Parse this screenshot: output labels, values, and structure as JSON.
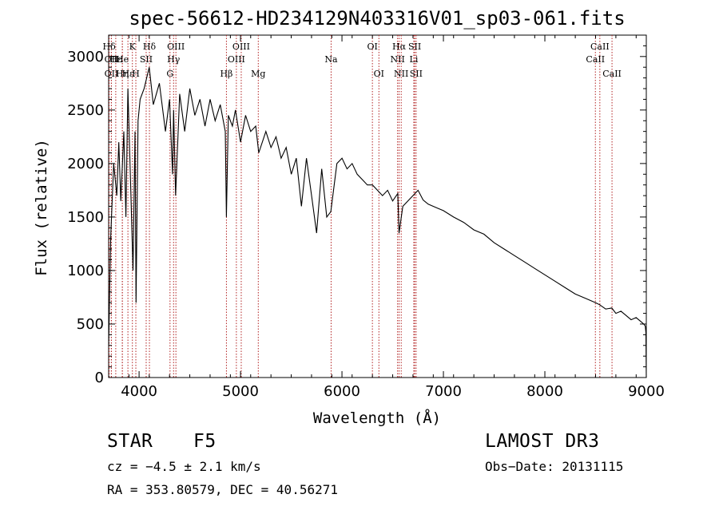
{
  "chart_data": {
    "type": "line",
    "title": "spec-56612-HD234129N403316V01_sp03-061.fits",
    "xlabel": "Wavelength (Å)",
    "ylabel": "Flux (relative)",
    "xlim": [
      3700,
      9000
    ],
    "ylim": [
      0,
      3200
    ],
    "xticks": [
      4000,
      5000,
      6000,
      7000,
      8000,
      9000
    ],
    "yticks": [
      0,
      500,
      1000,
      1500,
      2000,
      2500,
      3000
    ],
    "grid": false,
    "series": [
      {
        "name": "spectrum",
        "x": [
          3700,
          3720,
          3750,
          3780,
          3800,
          3820,
          3850,
          3870,
          3890,
          3920,
          3940,
          3960,
          3970,
          3990,
          4010,
          4050,
          4100,
          4140,
          4200,
          4260,
          4300,
          4330,
          4340,
          4360,
          4400,
          4450,
          4500,
          4550,
          4600,
          4650,
          4700,
          4750,
          4800,
          4850,
          4861,
          4880,
          4920,
          4950,
          5000,
          5050,
          5100,
          5150,
          5180,
          5250,
          5300,
          5350,
          5400,
          5450,
          5500,
          5550,
          5600,
          5650,
          5700,
          5750,
          5800,
          5850,
          5890,
          5950,
          6000,
          6050,
          6100,
          6150,
          6200,
          6250,
          6300,
          6350,
          6400,
          6450,
          6500,
          6550,
          6563,
          6600,
          6650,
          6700,
          6750,
          6800,
          6850,
          6900,
          6950,
          7000,
          7100,
          7200,
          7300,
          7400,
          7500,
          7600,
          7700,
          7800,
          7900,
          8000,
          8100,
          8200,
          8300,
          8400,
          8500,
          8540,
          8600,
          8660,
          8700,
          8750,
          8800,
          8850,
          8900,
          8950,
          8975,
          8990,
          8996,
          9000
        ],
        "values": [
          300,
          1300,
          2000,
          1700,
          2200,
          1650,
          2300,
          1500,
          2700,
          1700,
          1000,
          2300,
          700,
          2400,
          2600,
          2700,
          2900,
          2550,
          2750,
          2300,
          2600,
          1900,
          2500,
          1700,
          2650,
          2300,
          2700,
          2450,
          2600,
          2350,
          2600,
          2400,
          2550,
          2300,
          1500,
          2450,
          2350,
          2500,
          2200,
          2450,
          2300,
          2350,
          2100,
          2300,
          2150,
          2250,
          2050,
          2150,
          1900,
          2050,
          1600,
          2050,
          1700,
          1350,
          1950,
          1500,
          1550,
          2000,
          2050,
          1950,
          2000,
          1900,
          1850,
          1800,
          1800,
          1750,
          1700,
          1750,
          1650,
          1720,
          1350,
          1600,
          1650,
          1700,
          1750,
          1660,
          1620,
          1600,
          1580,
          1560,
          1500,
          1450,
          1380,
          1340,
          1260,
          1200,
          1140,
          1080,
          1020,
          960,
          900,
          840,
          780,
          740,
          700,
          680,
          640,
          650,
          600,
          620,
          580,
          540,
          560,
          520,
          500,
          480,
          420,
          0
        ]
      }
    ],
    "line_markers": [
      {
        "label": "Hδ",
        "x": 3705,
        "row": 0
      },
      {
        "label": "OII",
        "x": 3727,
        "row": 1
      },
      {
        "label": "OII",
        "x": 3727,
        "row": 2
      },
      {
        "label": "Hε",
        "x": 3770,
        "row": 1
      },
      {
        "label": "He",
        "x": 3835,
        "row": 1
      },
      {
        "label": "Hη",
        "x": 3835,
        "row": 2
      },
      {
        "label": "K",
        "x": 3934,
        "row": 0
      },
      {
        "label": "Hε",
        "x": 3890,
        "row": 2
      },
      {
        "label": "H",
        "x": 3968,
        "row": 2
      },
      {
        "label": "SII",
        "x": 4070,
        "row": 1
      },
      {
        "label": "Hδ",
        "x": 4102,
        "row": 0
      },
      {
        "label": "OIII",
        "x": 4363,
        "row": 0
      },
      {
        "label": "Hγ",
        "x": 4340,
        "row": 1
      },
      {
        "label": "G",
        "x": 4305,
        "row": 2
      },
      {
        "label": "Hβ",
        "x": 4861,
        "row": 2
      },
      {
        "label": "OIII",
        "x": 5007,
        "row": 0
      },
      {
        "label": "OIII",
        "x": 4959,
        "row": 1
      },
      {
        "label": "Mg",
        "x": 5175,
        "row": 2
      },
      {
        "label": "Na",
        "x": 5893,
        "row": 1
      },
      {
        "label": "OI",
        "x": 6300,
        "row": 0
      },
      {
        "label": "OI",
        "x": 6364,
        "row": 2
      },
      {
        "label": "Hα",
        "x": 6563,
        "row": 0
      },
      {
        "label": "NII",
        "x": 6548,
        "row": 1
      },
      {
        "label": "NII",
        "x": 6584,
        "row": 2
      },
      {
        "label": "SII",
        "x": 6717,
        "row": 0
      },
      {
        "label": "Li",
        "x": 6708,
        "row": 1
      },
      {
        "label": "SII",
        "x": 6731,
        "row": 2
      },
      {
        "label": "CaII",
        "x": 8542,
        "row": 0
      },
      {
        "label": "CaII",
        "x": 8498,
        "row": 1
      },
      {
        "label": "CaII",
        "x": 8662,
        "row": 2
      }
    ],
    "marker_color": "#b22222"
  },
  "info": {
    "object_class": "STAR",
    "subclass": "F5",
    "survey": "LAMOST DR3",
    "cz": "cz = −4.5 ± 2.1 km/s",
    "obs_date": "Obs−Date: 20131115",
    "coords": "RA = 353.80579, DEC =  40.56271"
  }
}
